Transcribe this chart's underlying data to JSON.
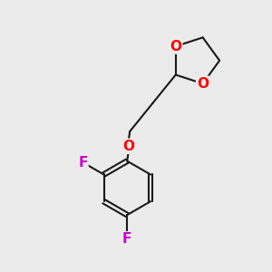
{
  "background_color": "#ebebeb",
  "bond_color": "#1a1a1a",
  "bond_width": 1.5,
  "O_color": "#ff0000",
  "F_color": "#cc00cc",
  "font_size_atom": 11,
  "figsize": [
    3.0,
    3.0
  ],
  "dpi": 100,
  "xlim": [
    0,
    10
  ],
  "ylim": [
    0,
    10
  ]
}
